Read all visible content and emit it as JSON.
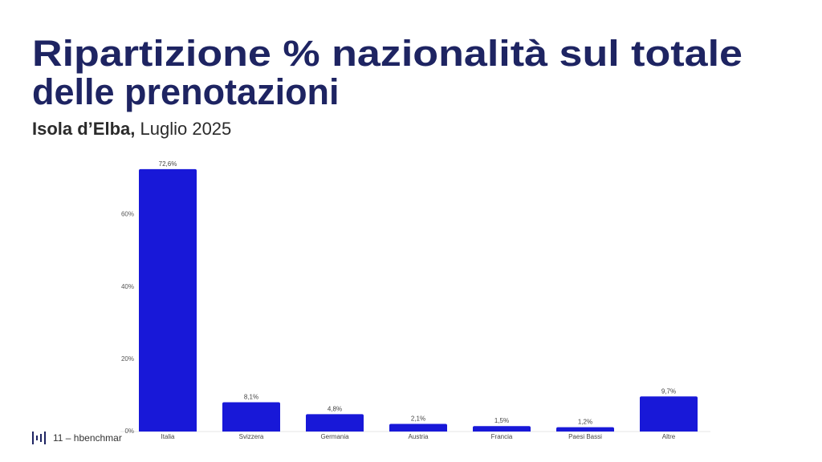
{
  "chart_data": {
    "type": "bar",
    "title": [
      "Ripartizione % nazionalità sul totale",
      "delle prenotazioni"
    ],
    "subtitle": {
      "place": "Isola d’Elba,",
      "period": "Luglio 2025"
    },
    "footer": "11 – hbenchmar",
    "categories": [
      "Italia",
      "Svizzera",
      "Germania",
      "Austria",
      "Francia",
      "Paesi Bassi",
      "Altre"
    ],
    "values": [
      72.6,
      8.1,
      4.8,
      2.1,
      1.5,
      1.2,
      9.7
    ],
    "value_labels": [
      "72,6%",
      "8,1%",
      "4,8%",
      "2,1%",
      "1,5%",
      "1,2%",
      "9,7%"
    ],
    "color": "#1818d8",
    "ylim": [
      0,
      75
    ],
    "yticks": [
      {
        "value": 0,
        "label": "0%"
      },
      {
        "value": 20,
        "label": "20%"
      },
      {
        "value": 40,
        "label": "40%"
      },
      {
        "value": 60,
        "label": "60%"
      }
    ],
    "grid": false
  }
}
